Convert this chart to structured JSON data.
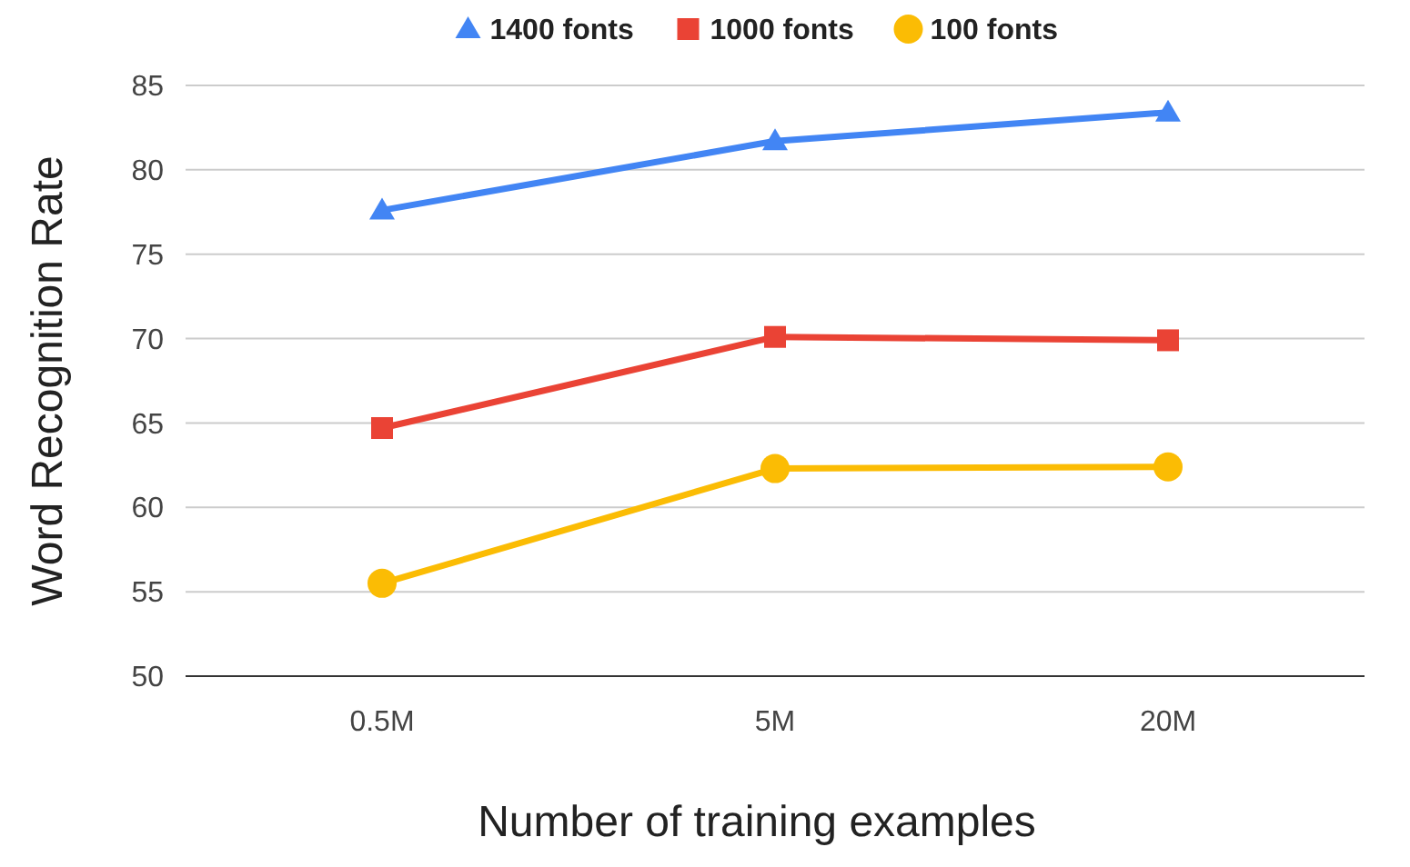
{
  "chart_data": {
    "type": "line",
    "xlabel": "Number of training examples",
    "ylabel": "Word Recognition Rate",
    "categories": [
      "0.5M",
      "5M",
      "20M"
    ],
    "series": [
      {
        "name": "1400 fonts",
        "color": "#4285f4",
        "marker": "triangle",
        "values": [
          77.6,
          81.7,
          83.4
        ]
      },
      {
        "name": "1000 fonts",
        "color": "#ea4335",
        "marker": "square",
        "values": [
          64.7,
          70.1,
          69.9
        ]
      },
      {
        "name": "100 fonts",
        "color": "#fbbc04",
        "marker": "circle",
        "values": [
          55.5,
          62.3,
          62.4
        ]
      }
    ],
    "ylim": [
      50,
      85
    ],
    "yticks": [
      50,
      55,
      60,
      65,
      70,
      75,
      80,
      85
    ],
    "grid": "y",
    "legend": "top"
  }
}
